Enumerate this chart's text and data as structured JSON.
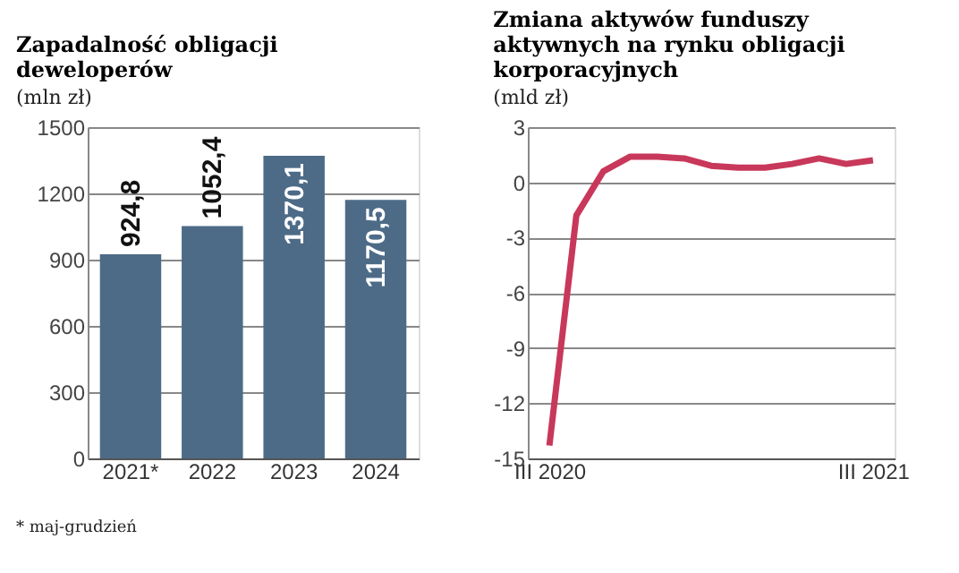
{
  "chart_data": [
    {
      "type": "bar",
      "title": "Zapadalność obligacji deweloperów",
      "subtitle": "(mln zł)",
      "categories": [
        "2021*",
        "2022",
        "2023",
        "2024"
      ],
      "values": [
        924.8,
        1052.4,
        1370.1,
        1170.5
      ],
      "value_labels": [
        "924,8",
        "1052,4",
        "1370,1",
        "1170,5"
      ],
      "color": "#4d6b87",
      "ylim": [
        0,
        1500
      ],
      "yticks": [
        0,
        300,
        600,
        900,
        1200,
        1500
      ],
      "grid": "y",
      "annotations": [
        "* maj-grudzień"
      ]
    },
    {
      "type": "line",
      "title": "Zmiana aktywów funduszy aktywnych na rynku obligacji korporacyjnych",
      "subtitle": "(mld zł)",
      "categories": [
        "III 2020",
        null,
        null,
        null,
        null,
        null,
        null,
        null,
        null,
        null,
        null,
        null,
        "III 2021"
      ],
      "values": [
        -14.3,
        -1.8,
        0.6,
        1.4,
        1.4,
        1.3,
        0.9,
        0.8,
        0.8,
        1.0,
        1.3,
        1.0,
        1.2
      ],
      "color": "#c8385a",
      "ylim": [
        -15,
        3
      ],
      "yticks": [
        -15,
        -12,
        -9,
        -6,
        -3,
        0,
        3
      ],
      "grid": "y",
      "marker": "none",
      "line_style": "solid"
    }
  ]
}
